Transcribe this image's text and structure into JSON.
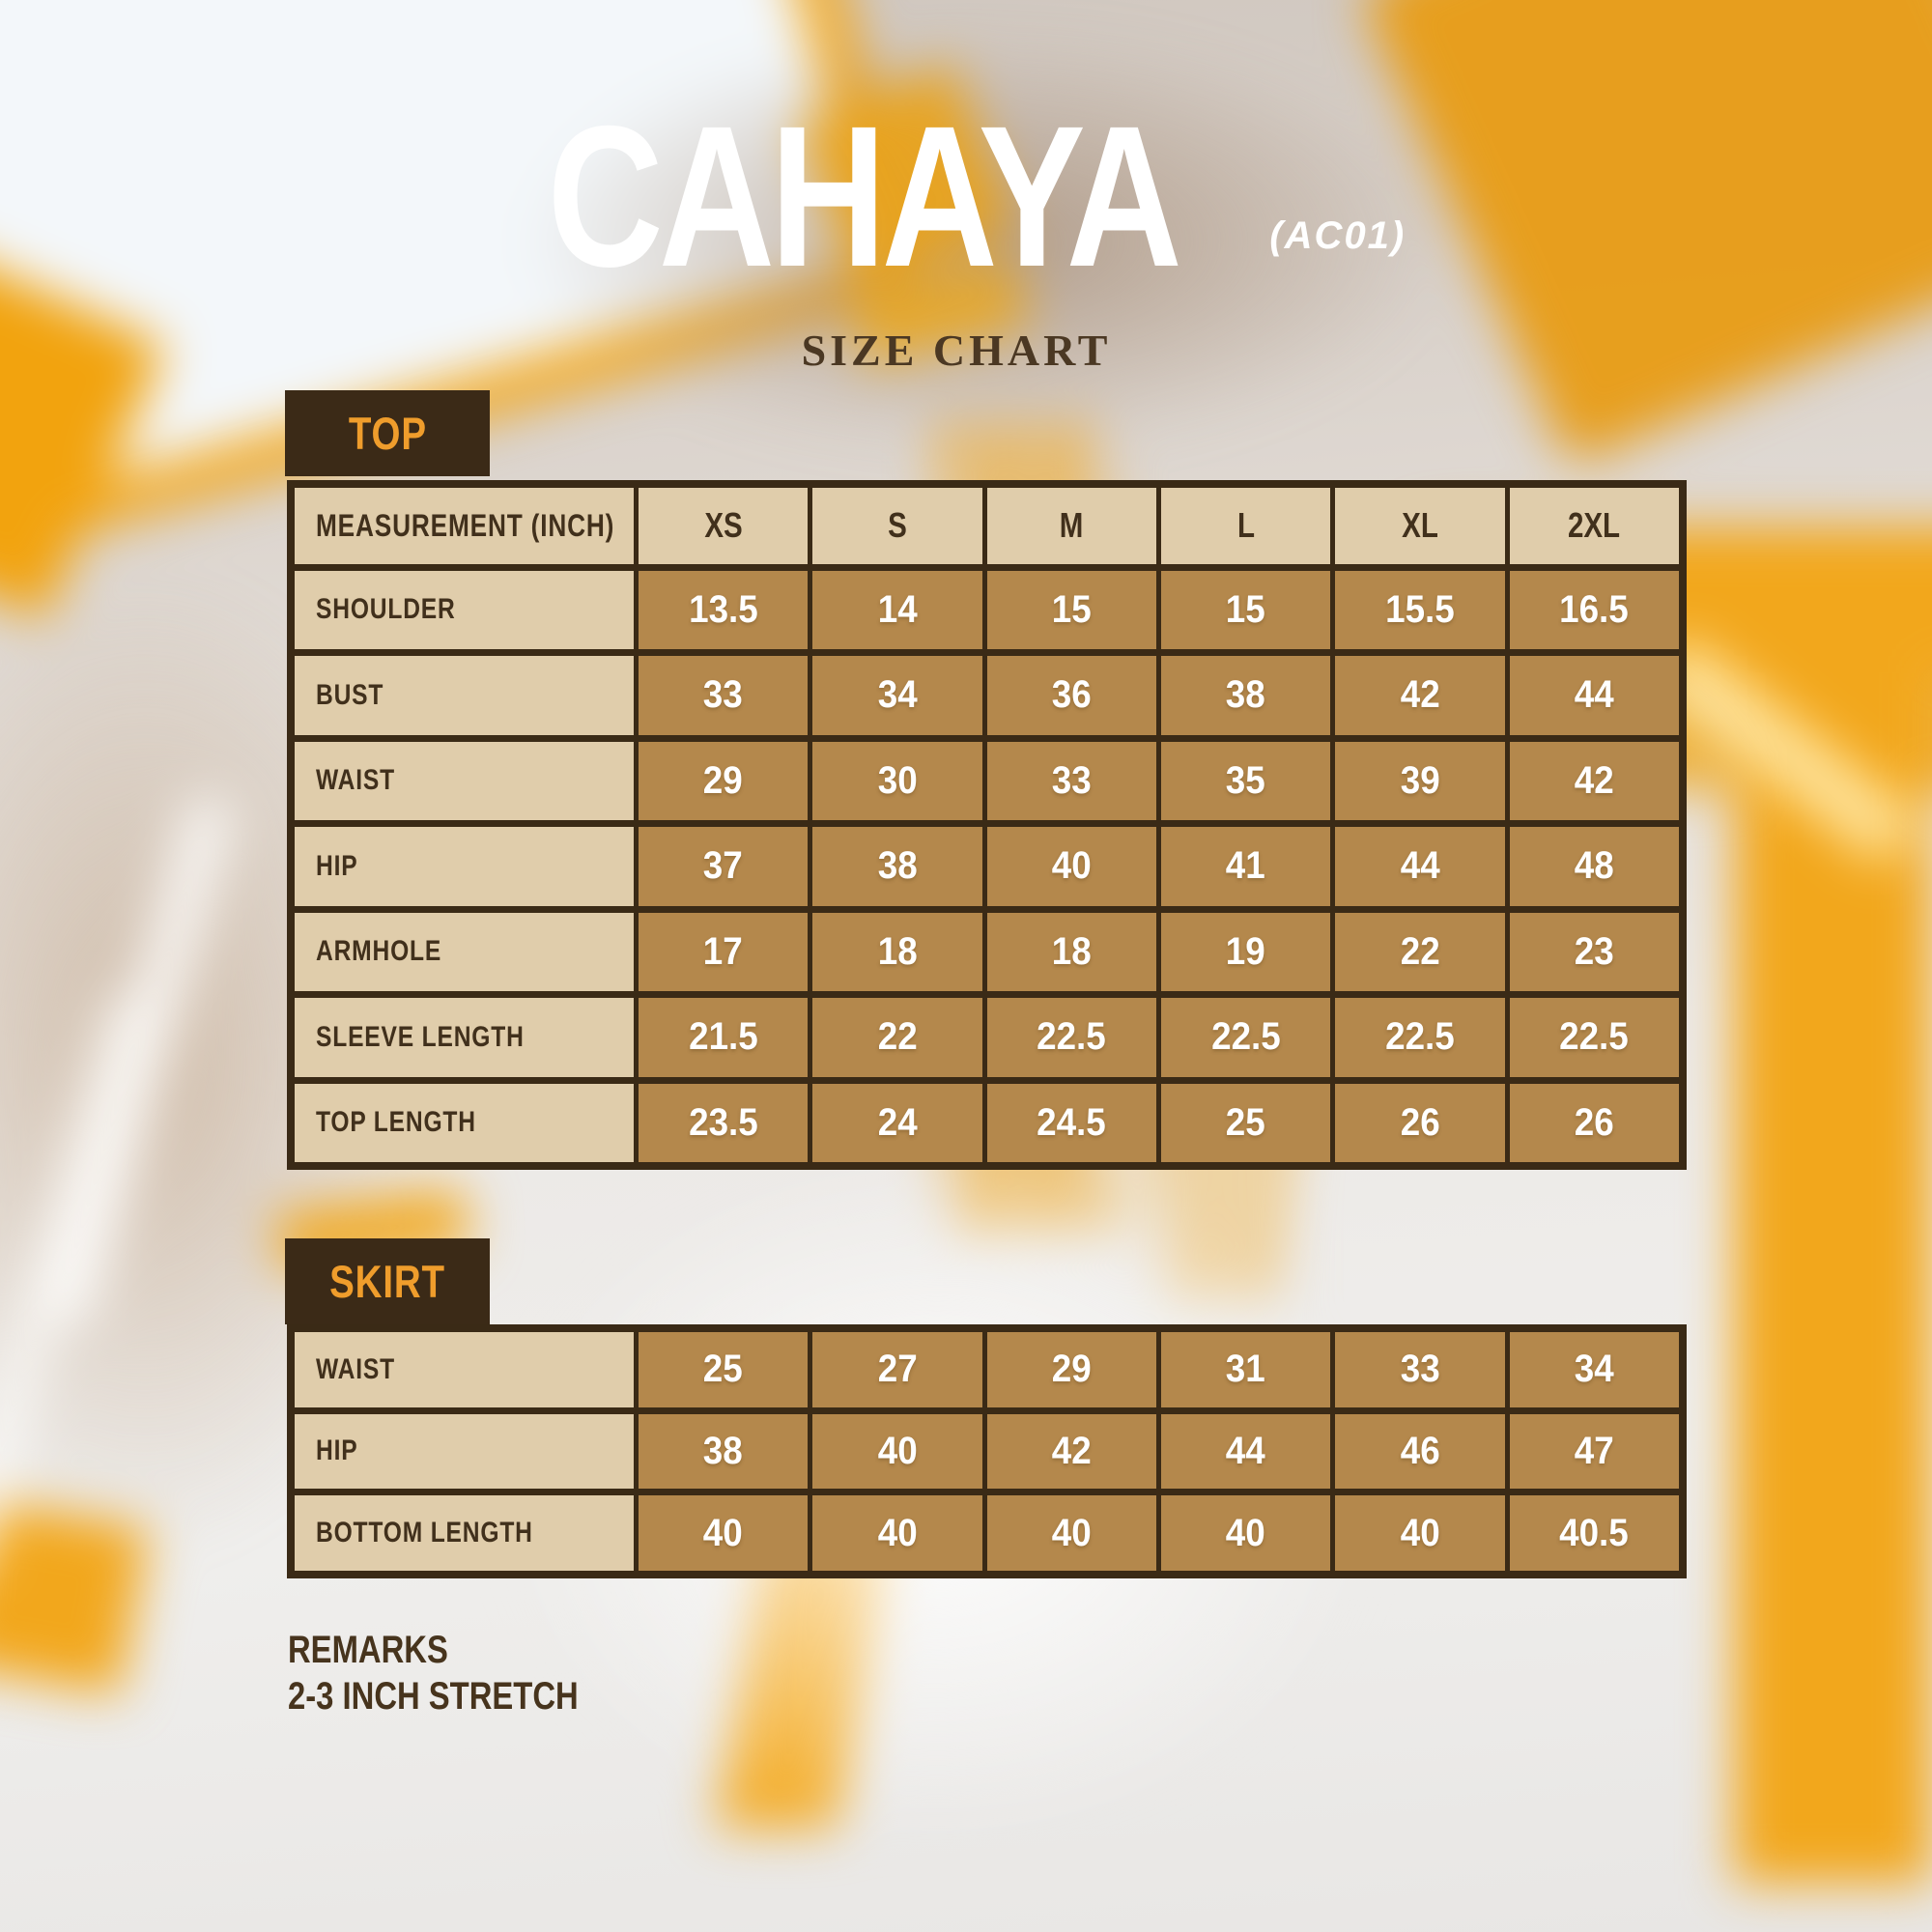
{
  "header": {
    "title": "CAHAYA",
    "code": "(AC01)",
    "subtitle": "SIZE CHART"
  },
  "sizes": [
    "XS",
    "S",
    "M",
    "L",
    "XL",
    "2XL"
  ],
  "top_section": {
    "label": "TOP",
    "header": "MEASUREMENT (INCH)",
    "rows": [
      {
        "label": "SHOULDER",
        "values": [
          "13.5",
          "14",
          "15",
          "15",
          "15.5",
          "16.5"
        ]
      },
      {
        "label": "BUST",
        "values": [
          "33",
          "34",
          "36",
          "38",
          "42",
          "44"
        ]
      },
      {
        "label": "WAIST",
        "values": [
          "29",
          "30",
          "33",
          "35",
          "39",
          "42"
        ]
      },
      {
        "label": "HIP",
        "values": [
          "37",
          "38",
          "40",
          "41",
          "44",
          "48"
        ]
      },
      {
        "label": "ARMHOLE",
        "values": [
          "17",
          "18",
          "18",
          "19",
          "22",
          "23"
        ]
      },
      {
        "label": "SLEEVE LENGTH",
        "values": [
          "21.5",
          "22",
          "22.5",
          "22.5",
          "22.5",
          "22.5"
        ]
      },
      {
        "label": "TOP LENGTH",
        "values": [
          "23.5",
          "24",
          "24.5",
          "25",
          "26",
          "26"
        ]
      }
    ]
  },
  "skirt_section": {
    "label": "SKIRT",
    "rows": [
      {
        "label": "WAIST",
        "values": [
          "25",
          "27",
          "29",
          "31",
          "33",
          "34"
        ]
      },
      {
        "label": "HIP",
        "values": [
          "38",
          "40",
          "42",
          "44",
          "46",
          "47"
        ]
      },
      {
        "label": "BOTTOM LENGTH",
        "values": [
          "40",
          "40",
          "40",
          "40",
          "40",
          "40.5"
        ]
      }
    ]
  },
  "remarks": {
    "heading": "REMARKS",
    "text": "2-3 INCH STRETCH"
  },
  "colors": {
    "dark_brown": "#3a2a16",
    "beige_cell": "#ebd8b5",
    "tan_cell": "#cf9e58",
    "badge_orange": "#ef9d2c",
    "title_white": "#ffffff",
    "subtitle_brown": "#4b3823",
    "scene_yellow": "#f2a71c"
  }
}
